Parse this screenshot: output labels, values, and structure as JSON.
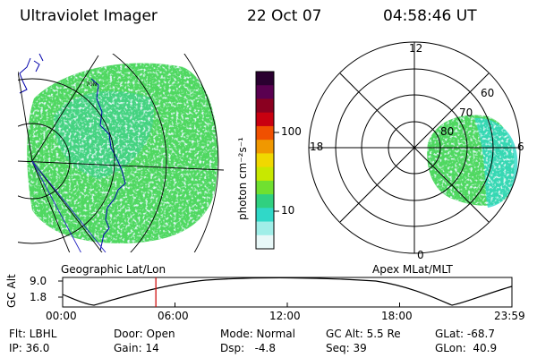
{
  "header": {
    "instrument": "Ultraviolet Imager",
    "date": "22 Oct 07",
    "time": "04:58:46 UT"
  },
  "geo_panel": {
    "label": "Geographic Lat/Lon"
  },
  "polar_panel": {
    "label": "Apex MLat/MLT",
    "mlt_labels": [
      "12",
      "18",
      "6",
      "0"
    ],
    "lat_labels": [
      "60",
      "70",
      "80"
    ]
  },
  "colorbar": {
    "unit_label": "photon cm⁻²s⁻¹",
    "tick_labels": [
      "100",
      "10"
    ],
    "colors": [
      "#2a0030",
      "#5a0050",
      "#8a0020",
      "#c80010",
      "#f05000",
      "#f09800",
      "#f0d800",
      "#c8e800",
      "#70e030",
      "#30d080",
      "#30d8c8",
      "#a0eee8",
      "#e8f8f8"
    ]
  },
  "timeline": {
    "y_axis_label": "GC Alt",
    "y_ticks": [
      "9.0",
      "1.8"
    ],
    "x_ticks": [
      "00:00",
      "06:00",
      "12:00",
      "18:00",
      "23:59"
    ],
    "current_time_hours": 4.98,
    "marker_color": "#d01010"
  },
  "status": {
    "row1": [
      {
        "key": "flt",
        "text": "Flt: LBHL"
      },
      {
        "key": "door",
        "text": "Door: Open"
      },
      {
        "key": "mode",
        "text": "Mode: Normal"
      },
      {
        "key": "gcalt",
        "text": "GC Alt: 5.5 Re"
      },
      {
        "key": "glat",
        "text": "GLat: -68.7"
      }
    ],
    "row2": [
      {
        "key": "ip",
        "text": "IP: 36.0"
      },
      {
        "key": "gain",
        "text": "Gain: 14"
      },
      {
        "key": "dsp",
        "text": "Dsp:   -4.8"
      },
      {
        "key": "seq",
        "text": "Seq: 39"
      },
      {
        "key": "glon",
        "text": "GLon:  40.9"
      }
    ]
  }
}
